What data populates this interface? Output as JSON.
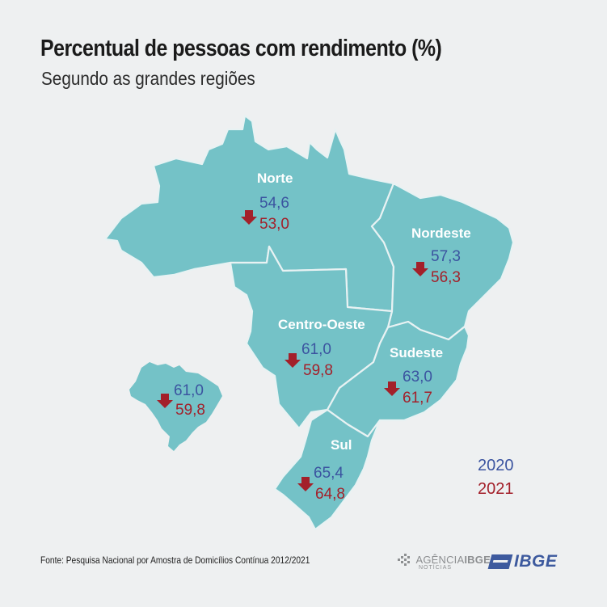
{
  "title": "Percentual de pessoas com rendimento (%)",
  "subtitle": "Segundo as grandes regiões",
  "regions": {
    "norte": {
      "name": "Norte",
      "v2020": "54,6",
      "v2021": "53,0"
    },
    "nordeste": {
      "name": "Nordeste",
      "v2020": "57,3",
      "v2021": "56,3"
    },
    "centro_oeste": {
      "name": "Centro-Oeste",
      "v2020": "61,0",
      "v2021": "59,8"
    },
    "sudeste": {
      "name": "Sudeste",
      "v2020": "63,0",
      "v2021": "61,7"
    },
    "sul": {
      "name": "Sul",
      "v2020": "65,4",
      "v2021": "64,8"
    }
  },
  "brasil": {
    "v2020": "61,0",
    "v2021": "59,8"
  },
  "legend": {
    "y2020": "2020",
    "y2021": "2021",
    "color2020": "#3b54a0",
    "color2021": "#a3202a"
  },
  "source": "Fonte: Pesquisa Nacional por Amostra de Domicílios Contínua 2012/2021",
  "logos": {
    "agencia_a": "AGÊNCIA",
    "agencia_b": "IBGE",
    "agencia_sub": "NOTÍCIAS",
    "ibge": "IBGE"
  },
  "colors": {
    "region_fill": "#74c2c7",
    "background": "#eef0f1"
  }
}
